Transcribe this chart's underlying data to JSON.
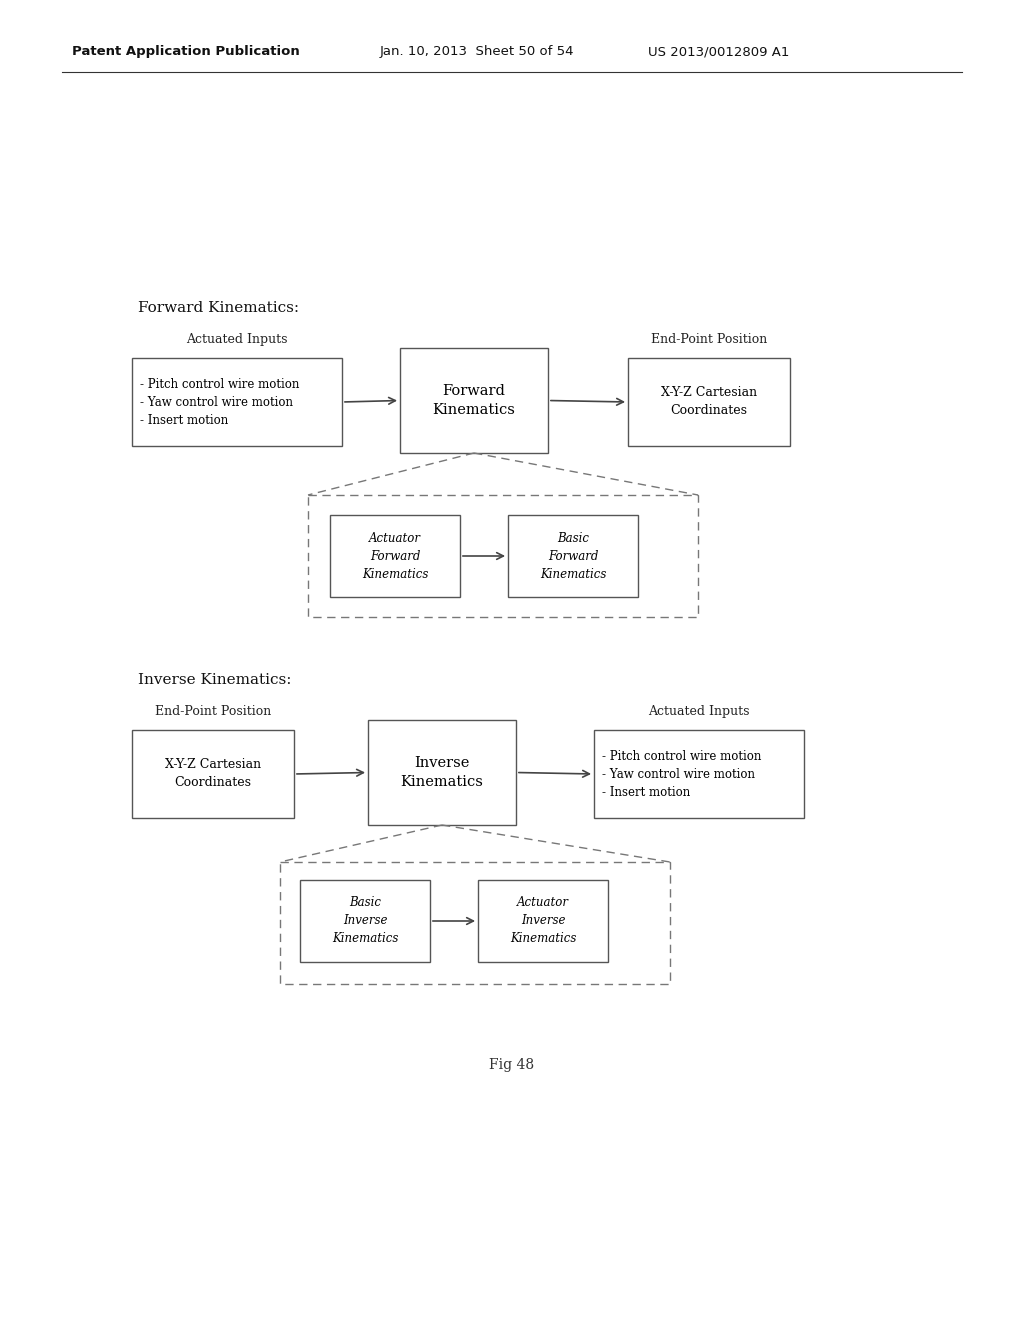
{
  "bg_color": "#ffffff",
  "header_left": "Patent Application Publication",
  "header_mid": "Jan. 10, 2013  Sheet 50 of 54",
  "header_right": "US 2013/0012809 A1",
  "fig_label": "Fig 48",
  "forward_title": "Forward Kinematics:",
  "inverse_title": "Inverse Kinematics:",
  "fwd": {
    "actuated_label": "Actuated Inputs",
    "actuated_box": "- Pitch control wire motion\n- Yaw control wire motion\n- Insert motion",
    "center_box": "Forward\nKinematics",
    "endpoint_label": "End-Point Position",
    "endpoint_box": "X-Y-Z Cartesian\nCoordinates",
    "inner_box1": "Actuator\nForward\nKinematics",
    "inner_box2": "Basic\nForward\nKinematics"
  },
  "inv": {
    "endpoint_label": "End-Point Position",
    "endpoint_box": "X-Y-Z Cartesian\nCoordinates",
    "center_box": "Inverse\nKinematics",
    "actuated_label": "Actuated Inputs",
    "actuated_box": "- Pitch control wire motion\n- Yaw control wire motion\n- Insert motion",
    "inner_box1": "Basic\nInverse\nKinematics",
    "inner_box2": "Actuator\nInverse\nKinematics"
  }
}
